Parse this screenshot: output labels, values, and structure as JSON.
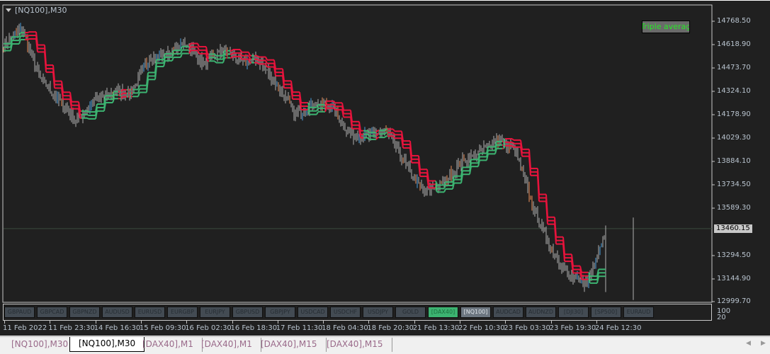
{
  "window": {
    "title": "[NQ100],M30",
    "legend_label": "Triple average",
    "current_price": "13460.15"
  },
  "colors": {
    "background": "#202020",
    "bull": "#4aa0e0",
    "bear": "#f0905a",
    "neutral": "#b0b0b0",
    "avg_down": "#e8133c",
    "avg_up": "#3cb371",
    "price_line": "#3a4a3e"
  },
  "price_axis": [
    "14768.50",
    "14618.90",
    "14473.70",
    "14324.10",
    "14178.90",
    "14029.30",
    "13884.10",
    "13734.50",
    "13589.30",
    "13294.50",
    "13144.90",
    "12999.70"
  ],
  "subwindow": {
    "levels": [
      "100",
      "20"
    ],
    "buttons": [
      {
        "label": "GBPAUD"
      },
      {
        "label": "GBPCAD"
      },
      {
        "label": "GBPNZD"
      },
      {
        "label": "AUDUSD"
      },
      {
        "label": "EURUSD"
      },
      {
        "label": "EURGBP"
      },
      {
        "label": "EURJPY"
      },
      {
        "label": "GBPUSD"
      },
      {
        "label": "GBPJPY"
      },
      {
        "label": "USDCAD"
      },
      {
        "label": "USDCHF"
      },
      {
        "label": "USDJPY"
      },
      {
        "label": "GOLD"
      },
      {
        "label": "[DAX40]",
        "state": "active"
      },
      {
        "label": "[NQ100]",
        "state": "selected"
      },
      {
        "label": "AUDCAD"
      },
      {
        "label": "AUDNZD"
      },
      {
        "label": "[DJI30]"
      },
      {
        "label": "[SP500]"
      },
      {
        "label": "EURAUD"
      }
    ]
  },
  "time_axis": [
    "11 Feb 2022",
    "11 Feb 23:30",
    "14 Feb 16:30",
    "15 Feb 09:30",
    "16 Feb 02:30",
    "16 Feb 18:30",
    "17 Feb 11:30",
    "18 Feb 04:30",
    "18 Feb 20:30",
    "21 Feb 13:30",
    "22 Feb 10:30",
    "23 Feb 03:30",
    "23 Feb 19:30",
    "24 Feb 12:30"
  ],
  "tabs": [
    {
      "label": "[NQ100],M30"
    },
    {
      "label": "[NQ100],M30",
      "active": true
    },
    {
      "label": "[DAX40],M1"
    },
    {
      "label": "[DAX40],M1"
    },
    {
      "label": "[DAX40],M15"
    },
    {
      "label": "[DAX40],M15"
    }
  ],
  "chart_data": {
    "type": "candlestick",
    "symbol": "[NQ100]",
    "timeframe": "M30",
    "ylim": [
      12999.7,
      14768.5
    ],
    "approx_close_path": [
      14630,
      14720,
      14407,
      14272,
      14139,
      14272,
      14318,
      14318,
      14540,
      14563,
      14630,
      14496,
      14585,
      14518,
      14518,
      14362,
      14183,
      14250,
      14228,
      14049,
      14049,
      14071,
      13870,
      13692,
      13737,
      13870,
      13937,
      14027,
      13960,
      13603,
      13335,
      13156,
      13112,
      13460
    ]
  }
}
